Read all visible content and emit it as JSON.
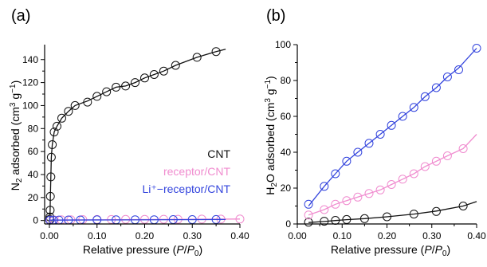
{
  "chart_data": [
    {
      "panel_label": "(a)",
      "type": "line",
      "xlabel": {
        "pre": "Relative pressure (",
        "ital": "P",
        "slash": "/",
        "ital2": "P",
        "sub": "0",
        "post": ")"
      },
      "ylabel": {
        "pre": "N",
        "sub": "2",
        "mid": " adsorbed (cm",
        "sup": "3",
        "mid2": " g",
        "sup2": "−1",
        "post": ")"
      },
      "xlim": [
        -0.01,
        0.4
      ],
      "ylim": [
        -3,
        153
      ],
      "xticks": [
        "0.00",
        "0.10",
        "0.20",
        "0.30",
        "0.40"
      ],
      "xtick_values": [
        0,
        0.1,
        0.2,
        0.3,
        0.4
      ],
      "yticks": [
        "0",
        "20",
        "40",
        "60",
        "80",
        "100",
        "120",
        "140"
      ],
      "ytick_values": [
        0,
        20,
        40,
        60,
        80,
        100,
        120,
        140
      ],
      "legend_position": "center-right",
      "series": [
        {
          "name": "CNT",
          "color": "#111111",
          "x": [
            0.0005,
            0.001,
            0.0015,
            0.002,
            0.003,
            0.004,
            0.006,
            0.01,
            0.016,
            0.026,
            0.04,
            0.054,
            0.08,
            0.1,
            0.12,
            0.14,
            0.16,
            0.18,
            0.2,
            0.22,
            0.24,
            0.265,
            0.31,
            0.35
          ],
          "y": [
            1,
            3,
            9,
            21,
            38,
            55,
            66,
            77,
            82,
            89,
            95,
            100,
            103,
            108,
            112,
            116,
            117,
            120,
            124,
            127,
            130,
            135,
            142,
            147
          ],
          "fit_x": [
            0,
            0.0005,
            0.001,
            0.0015,
            0.002,
            0.003,
            0.004,
            0.006,
            0.01,
            0.016,
            0.026,
            0.04,
            0.054,
            0.08,
            0.1,
            0.12,
            0.14,
            0.16,
            0.18,
            0.2,
            0.22,
            0.24,
            0.265,
            0.31,
            0.35,
            0.37
          ],
          "fit_y": [
            0,
            1,
            3,
            9,
            21,
            38,
            55,
            66,
            77,
            82,
            89,
            95,
            100,
            104,
            108,
            112,
            116,
            117,
            120,
            124,
            127,
            130,
            135,
            142,
            147,
            149
          ]
        },
        {
          "name": "receptor/CNT",
          "color": "#f08ccf",
          "x": [
            0.002,
            0.01,
            0.025,
            0.045,
            0.07,
            0.1,
            0.13,
            0.16,
            0.2,
            0.24,
            0.27,
            0.32,
            0.36,
            0.4
          ],
          "y": [
            0.4,
            0.5,
            0.6,
            0.7,
            0.8,
            0.9,
            0.9,
            1.0,
            1.0,
            1.1,
            1.1,
            1.2,
            1.2,
            1.3
          ],
          "fit_x": [
            0,
            0.4
          ],
          "fit_y": [
            0.4,
            1.3
          ]
        },
        {
          "name": "Li⁺−receptor/CNT",
          "color": "#3344dd",
          "x": [
            0.001,
            0.008,
            0.02,
            0.04,
            0.065,
            0.1,
            0.14,
            0.18,
            0.22,
            0.26,
            0.3,
            0.35
          ],
          "y": [
            0.3,
            0.4,
            0.4,
            0.5,
            0.5,
            0.6,
            0.6,
            0.7,
            0.7,
            0.8,
            0.8,
            0.9
          ],
          "fit_x": [
            0,
            0.37
          ],
          "fit_y": [
            0.3,
            0.9
          ]
        }
      ]
    },
    {
      "panel_label": "(b)",
      "type": "line",
      "xlabel": {
        "pre": "Relative pressure (",
        "ital": "P",
        "slash": "/",
        "ital2": "P",
        "sub": "0",
        "post": ")"
      },
      "ylabel": {
        "pre": "H",
        "sub": "2",
        "mid": "O adsorbed (cm",
        "sup": "3",
        "mid2": " g",
        "sup2": "−1",
        "post": ")"
      },
      "xlim": [
        0,
        0.4
      ],
      "ylim": [
        0,
        100
      ],
      "xticks": [
        "0.00",
        "0.10",
        "0.20",
        "0.30",
        "0.40"
      ],
      "xtick_values": [
        0,
        0.1,
        0.2,
        0.3,
        0.4
      ],
      "yticks": [
        "0",
        "20",
        "40",
        "60",
        "80",
        "100"
      ],
      "ytick_values": [
        0,
        20,
        40,
        60,
        80,
        100
      ],
      "series": [
        {
          "name": "CNT",
          "color": "#111111",
          "x": [
            0.025,
            0.06,
            0.085,
            0.11,
            0.15,
            0.2,
            0.26,
            0.31,
            0.37
          ],
          "y": [
            1.0,
            1.5,
            2.0,
            2.5,
            3.0,
            4.0,
            5.5,
            7.0,
            10.0
          ],
          "fit_x": [
            0.025,
            0.06,
            0.085,
            0.11,
            0.15,
            0.2,
            0.26,
            0.31,
            0.37,
            0.4
          ],
          "fit_y": [
            0.8,
            1.4,
            1.9,
            2.4,
            3.0,
            4.0,
            5.5,
            7.2,
            10.0,
            12.5
          ]
        },
        {
          "name": "receptor/CNT",
          "color": "#f08ccf",
          "x": [
            0.025,
            0.06,
            0.085,
            0.11,
            0.135,
            0.16,
            0.185,
            0.21,
            0.235,
            0.26,
            0.285,
            0.31,
            0.335,
            0.37
          ],
          "y": [
            5,
            8,
            11,
            13,
            15,
            17,
            19,
            22,
            25,
            28,
            32,
            35,
            38,
            42
          ],
          "fit_x": [
            0.025,
            0.06,
            0.085,
            0.11,
            0.135,
            0.16,
            0.185,
            0.21,
            0.235,
            0.26,
            0.285,
            0.31,
            0.335,
            0.37,
            0.4
          ],
          "fit_y": [
            5,
            8,
            11,
            13,
            15,
            17,
            19,
            22,
            25,
            28,
            32,
            35,
            38,
            42,
            50
          ]
        },
        {
          "name": "Li⁺−receptor/CNT",
          "color": "#3344dd",
          "x": [
            0.025,
            0.06,
            0.085,
            0.11,
            0.135,
            0.16,
            0.185,
            0.21,
            0.235,
            0.26,
            0.285,
            0.31,
            0.335,
            0.36,
            0.4
          ],
          "y": [
            11,
            21,
            28,
            35,
            40,
            45,
            50,
            55,
            60,
            65,
            71,
            76,
            82,
            86,
            98
          ],
          "fit_x": [
            0.025,
            0.06,
            0.085,
            0.11,
            0.135,
            0.16,
            0.185,
            0.21,
            0.235,
            0.26,
            0.285,
            0.31,
            0.335,
            0.36,
            0.4
          ],
          "fit_y": [
            10,
            21,
            28,
            35,
            40,
            45,
            50,
            55,
            60,
            65,
            71,
            76,
            82,
            87,
            98
          ]
        }
      ]
    }
  ]
}
